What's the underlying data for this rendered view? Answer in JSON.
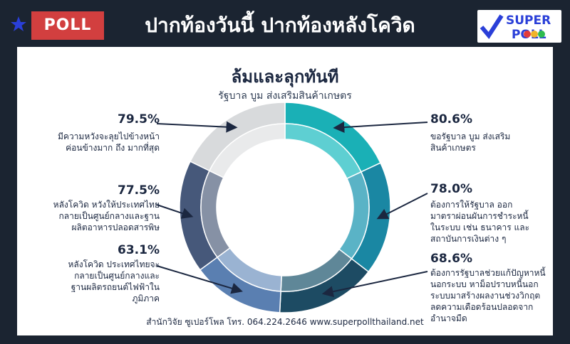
{
  "header": {
    "badge": "POLL",
    "title": "ปากท้องวันนี้  ปากท้องหลังโควิด",
    "logo_line1": "SUPER",
    "logo_line2": "POLL"
  },
  "card": {
    "title": "ล้มและลุกทันที",
    "subtitle": "รัฐบาล บูม ส่งเสริมสินค้าเกษตร",
    "footer": "สำนักวิจัย ซูเปอร์โพล โทร. 064.224.2646 www.superpollthailand.net"
  },
  "colors": {
    "background": "#1b2431",
    "badge": "#d23f3f",
    "text": "#1b2740"
  },
  "chart_data": {
    "type": "pie",
    "categories": [
      "ขอรัฐบาล บูม ส่งเสริม สินค้าเกษตร",
      "ต้องการให้รัฐบาล ออกมาตราผ่อนผันการชำระหนี้ในระบบ เช่น ธนาคาร และสถาบันการเงินต่าง ๆ",
      "ต้องการรัฐบาลช่วยแก้ปัญหาหนี้นอกระบบ หาม็อปราบหนี้นอกระบบมาสร้างผลงานช่วงวิกฤตลดความเดือดร้อนปลอดจากอำนาจมืด",
      "หลังโควิด ประเทศไทยจะกลายเป็นศูนย์กลางและฐานผลิตรถยนต์ไฟฟ้าในภูมิภาค",
      "หลังโควิด หวังให้ประเทศไทยกลายเป็นศูนย์กลางและฐานผลิตอาหารปลอดสารพิษ",
      "มีความหวังจะลุยไปข้างหน้าค่อนข้างมาก ถึง มากที่สุด"
    ],
    "values": [
      80.6,
      78.0,
      68.6,
      63.1,
      77.5,
      79.5
    ],
    "labels": [
      "80.6%",
      "78.0%",
      "68.6%",
      "63.1%",
      "77.5%",
      "79.5%"
    ],
    "descriptions": [
      [
        "ขอรัฐบาล บูม ส่งเสริม",
        "สินค้าเกษตร"
      ],
      [
        "ต้องการให้รัฐบาล ออก",
        "มาตราผ่อนผันการชำระหนี้",
        "ในระบบ เช่น ธนาคาร และ",
        "สถาบันการเงินต่าง ๆ"
      ],
      [
        "ต้องการรัฐบาลช่วยแก้ปัญหาหนี้",
        "นอกระบบ หาม็อปราบหนี้นอก",
        "ระบบมาสร้างผลงานช่วงวิกฤต",
        "ลดความเดือดร้อนปลอดจาก",
        "อำนาจมืด"
      ],
      [
        "หลังโควิด ประเทศไทยจะ",
        "กลายเป็นศูนย์กลางและ",
        "ฐานผลิตรถยนต์ไฟฟ้าใน",
        "ภูมิภาค"
      ],
      [
        "หลังโควิด หวังให้ประเทศไทย",
        "กลายเป็นศูนย์กลางและฐาน",
        "ผลิตอาหารปลอดสารพิษ"
      ],
      [
        "มีความหวังจะลุยไปข้างหน้า",
        "ค่อนข้างมาก ถึง มากที่สุด"
      ]
    ],
    "segment_colors": [
      "#1ab0b6",
      "#1a87a3",
      "#1d4b63",
      "#5a7fb1",
      "#46587a",
      "#d8dadc"
    ],
    "inner_colors": [
      "#5ecfd2",
      "#5ab3c6",
      "#5f8798",
      "#9ab3d2",
      "#8691a5",
      "#e9eaeb"
    ],
    "arrow_color": "#1b2740"
  }
}
